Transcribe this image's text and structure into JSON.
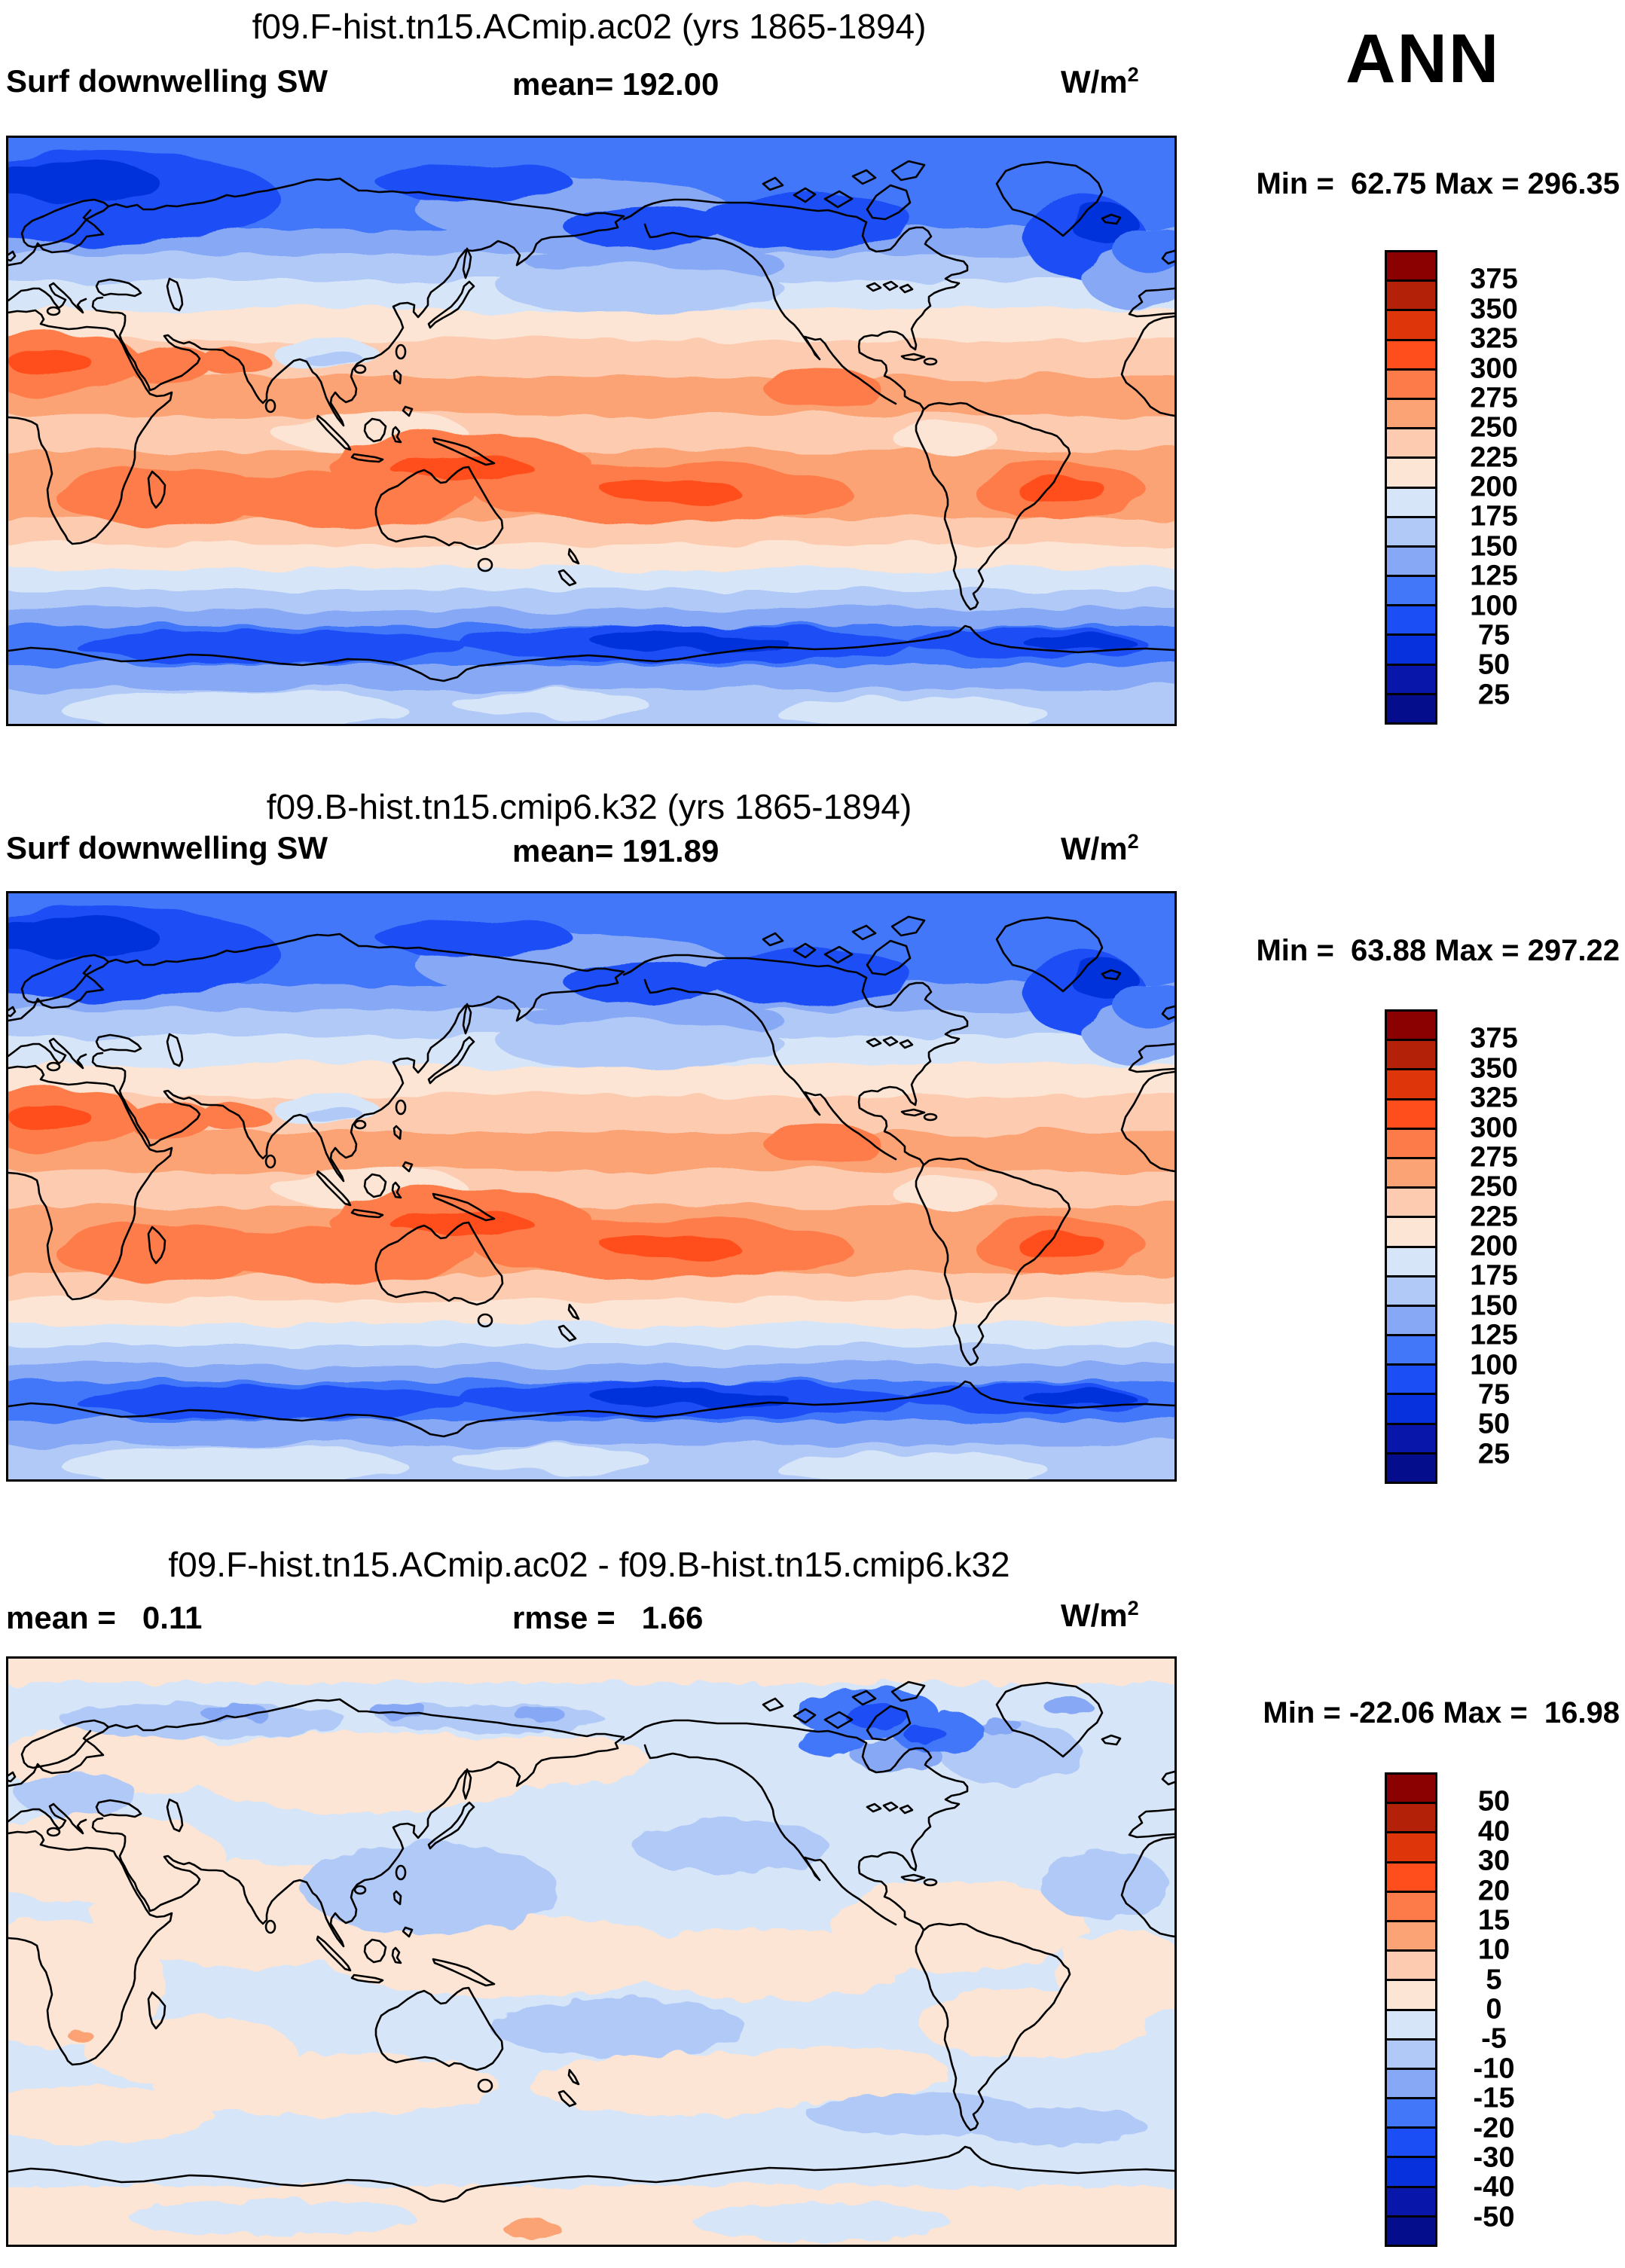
{
  "season_label": "ANN",
  "palette": {
    "c1": "#8B0000",
    "c2": "#B42109",
    "c3": "#DE350B",
    "c4": "#FF4E1B",
    "c5": "#FD7B48",
    "c6": "#FCA375",
    "c7": "#FCCBB0",
    "c8": "#FCE5D4",
    "c9": "#D6E5F8",
    "c10": "#B1C9F7",
    "c11": "#87A8F5",
    "c12": "#4277FA",
    "c13": "#1B4EF5",
    "c14": "#0631DC",
    "c15": "#0817AA",
    "c16": "#040E8C"
  },
  "chart_data": [
    {
      "type": "heatmap",
      "title": "f09.F-hist.tn15.ACmip.ac02 (yrs 1865-1894)",
      "header_left": "Surf downwelling SW",
      "header_center": "mean= 192.00",
      "units_base": "W/m",
      "units_exp": "2",
      "minmax": "Min =  62.75 Max = 296.35",
      "min": 62.75,
      "max": 296.35,
      "mean": 192.0,
      "projection": "global lat-lon (equirectangular), 0-360E, 90N-90S",
      "levels": [
        25,
        50,
        75,
        100,
        125,
        150,
        175,
        200,
        225,
        250,
        275,
        300,
        325,
        350,
        375
      ],
      "colorbar_labels": [
        "375",
        "350",
        "325",
        "300",
        "275",
        "250",
        "225",
        "200",
        "175",
        "150",
        "125",
        "100",
        "75",
        "50",
        "25"
      ],
      "colorbar_cells": [
        "c1",
        "c2",
        "c3",
        "c4",
        "c5",
        "c6",
        "c7",
        "c8",
        "c9",
        "c10",
        "c11",
        "c12",
        "c13",
        "c14",
        "c15",
        "c16"
      ],
      "legend_position": "right"
    },
    {
      "type": "heatmap",
      "title": "f09.B-hist.tn15.cmip6.k32 (yrs 1865-1894)",
      "header_left": "Surf downwelling SW",
      "header_center": "mean= 191.89",
      "units_base": "W/m",
      "units_exp": "2",
      "minmax": "Min =  63.88 Max = 297.22",
      "min": 63.88,
      "max": 297.22,
      "mean": 191.89,
      "projection": "global lat-lon (equirectangular), 0-360E, 90N-90S",
      "levels": [
        25,
        50,
        75,
        100,
        125,
        150,
        175,
        200,
        225,
        250,
        275,
        300,
        325,
        350,
        375
      ],
      "colorbar_labels": [
        "375",
        "350",
        "325",
        "300",
        "275",
        "250",
        "225",
        "200",
        "175",
        "150",
        "125",
        "100",
        "75",
        "50",
        "25"
      ],
      "colorbar_cells": [
        "c1",
        "c2",
        "c3",
        "c4",
        "c5",
        "c6",
        "c7",
        "c8",
        "c9",
        "c10",
        "c11",
        "c12",
        "c13",
        "c14",
        "c15",
        "c16"
      ],
      "legend_position": "right"
    },
    {
      "type": "heatmap",
      "title": "f09.F-hist.tn15.ACmip.ac02 - f09.B-hist.tn15.cmip6.k32",
      "header_left": "mean =   0.11",
      "header_center": "rmse =   1.66",
      "units_base": "W/m",
      "units_exp": "2",
      "minmax": "Min = -22.06 Max =  16.98",
      "min": -22.06,
      "max": 16.98,
      "mean": 0.11,
      "rmse": 1.66,
      "projection": "global lat-lon (equirectangular), 0-360E, 90N-90S",
      "levels": [
        -50,
        -40,
        -30,
        -20,
        -15,
        -10,
        -5,
        0,
        5,
        10,
        15,
        20,
        30,
        40,
        50
      ],
      "colorbar_labels": [
        "50",
        "40",
        "30",
        "20",
        "15",
        "10",
        "5",
        "0",
        "-5",
        "-10",
        "-15",
        "-20",
        "-30",
        "-40",
        "-50"
      ],
      "colorbar_cells": [
        "c1",
        "c2",
        "c3",
        "c4",
        "c5",
        "c6",
        "c7",
        "c8",
        "c9",
        "c10",
        "c11",
        "c12",
        "c13",
        "c14",
        "c15",
        "c16"
      ],
      "legend_position": "right"
    }
  ]
}
